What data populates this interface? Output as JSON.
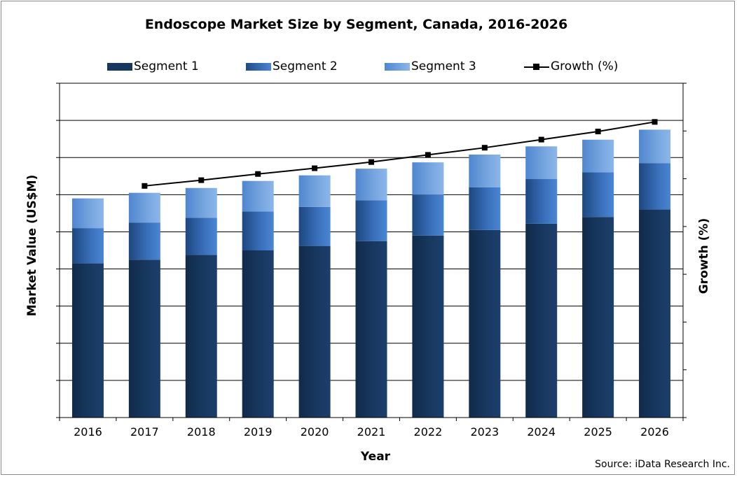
{
  "source": "Source: iData Research Inc.",
  "colors": {
    "segment1": "#17375e",
    "segment2": "#3a6fb8",
    "segment3": "#6e9fdb",
    "growth": "#000000"
  },
  "chart_data": {
    "type": "bar",
    "stacked": true,
    "title": "Endoscope Market Size by Segment, Canada, 2016-2026",
    "xlabel": "Year",
    "ylabel": "Market Value (US$M)",
    "y2label": "Growth (%)",
    "ylim": [
      0,
      9
    ],
    "y2lim": [
      0,
      7
    ],
    "grid": true,
    "legend_position": "top",
    "categories": [
      "2016",
      "2017",
      "2018",
      "2019",
      "2020",
      "2021",
      "2022",
      "2023",
      "2024",
      "2025",
      "2026"
    ],
    "series": [
      {
        "name": "Segment 1",
        "values": [
          4.15,
          4.25,
          4.38,
          4.5,
          4.62,
          4.75,
          4.9,
          5.05,
          5.22,
          5.4,
          5.6
        ]
      },
      {
        "name": "Segment 2",
        "values": [
          0.95,
          1.0,
          1.0,
          1.05,
          1.05,
          1.1,
          1.1,
          1.15,
          1.2,
          1.2,
          1.25
        ]
      },
      {
        "name": "Segment 3",
        "values": [
          0.8,
          0.8,
          0.8,
          0.82,
          0.85,
          0.85,
          0.87,
          0.88,
          0.88,
          0.88,
          0.9
        ]
      },
      {
        "name": "Growth (%)",
        "type": "line",
        "axis": "right",
        "values": [
          null,
          4.85,
          4.97,
          5.1,
          5.22,
          5.35,
          5.5,
          5.65,
          5.82,
          5.99,
          6.19
        ]
      }
    ]
  }
}
